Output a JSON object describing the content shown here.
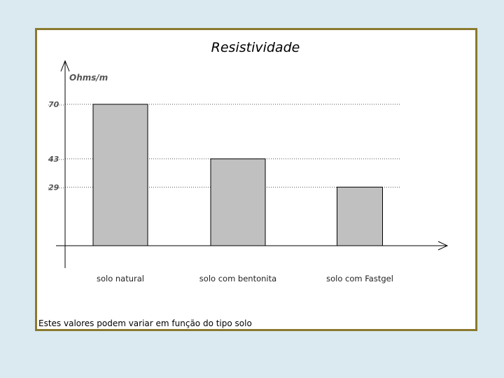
{
  "chart_data": {
    "type": "bar",
    "title": "Resistividade",
    "ylabel": "Ohms/m",
    "xlabel": "",
    "categories": [
      "solo natural",
      "solo com bentonita",
      "solo com Fastgel"
    ],
    "values": [
      70,
      43,
      29
    ],
    "yticks": [
      70,
      43,
      29
    ],
    "ylim": [
      0,
      70
    ],
    "grid": "dotted horizontal lines at tick values",
    "bar_color": "#c0c0c0",
    "note": "Estes valores podem variar em função do tipo solo"
  }
}
